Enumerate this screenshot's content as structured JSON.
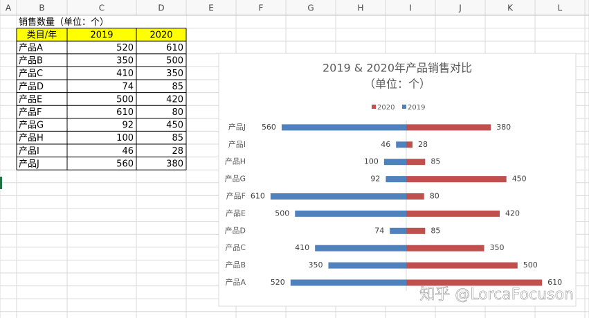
{
  "sheet": {
    "columns": [
      "A",
      "B",
      "C",
      "D",
      "E",
      "F",
      "G",
      "H",
      "I",
      "J",
      "K",
      "L"
    ]
  },
  "table": {
    "title": "销售数量（单位：个）",
    "header": [
      "类目/年",
      "2019",
      "2020"
    ],
    "rows": [
      [
        "产品A",
        "520",
        "610"
      ],
      [
        "产品B",
        "350",
        "500"
      ],
      [
        "产品C",
        "410",
        "350"
      ],
      [
        "产品D",
        "74",
        "85"
      ],
      [
        "产品E",
        "500",
        "420"
      ],
      [
        "产品F",
        "610",
        "80"
      ],
      [
        "产品G",
        "92",
        "450"
      ],
      [
        "产品H",
        "100",
        "85"
      ],
      [
        "产品I",
        "46",
        "28"
      ],
      [
        "产品J",
        "560",
        "380"
      ]
    ]
  },
  "chart_data": {
    "type": "butterfly-bar",
    "title": "2019 & 2020年产品销售对比",
    "subtitle": "（单位：个）",
    "categories": [
      "产品A",
      "产品B",
      "产品C",
      "产品D",
      "产品E",
      "产品F",
      "产品G",
      "产品H",
      "产品I",
      "产品J"
    ],
    "series": [
      {
        "name": "2019",
        "color": "#4f81bd",
        "values": [
          520,
          350,
          410,
          74,
          500,
          610,
          92,
          100,
          46,
          560
        ]
      },
      {
        "name": "2020",
        "color": "#c0504d",
        "values": [
          610,
          500,
          350,
          85,
          420,
          80,
          450,
          85,
          28,
          380
        ]
      }
    ],
    "xlim": [
      0,
      650
    ],
    "legend": "top"
  },
  "watermark": "知乎 @LorcaFocuson"
}
